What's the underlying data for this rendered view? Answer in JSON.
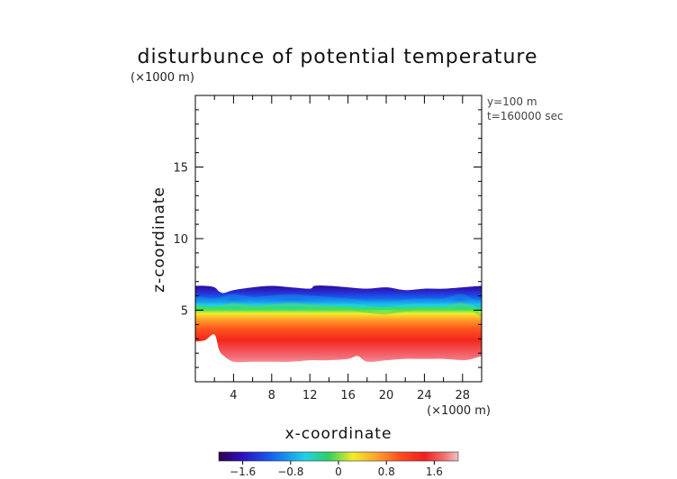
{
  "chart_data": {
    "type": "heatmap",
    "title": "disturbunce of potential temperature",
    "xlabel": "x-coordinate",
    "ylabel": "z-coordinate",
    "x_unit": "(×1000 m)",
    "y_unit": "(×1000 m)",
    "annotations": [
      "y=100 m",
      "t=160000 sec"
    ],
    "xlim": [
      0,
      30
    ],
    "ylim": [
      0,
      20
    ],
    "x_ticks": [
      4,
      8,
      12,
      16,
      20,
      24,
      28
    ],
    "y_ticks": [
      5,
      10,
      15
    ],
    "colorbar": {
      "range": [
        -2.0,
        2.0
      ],
      "ticks": [
        -1.6,
        -0.8,
        0,
        0.8,
        1.6
      ],
      "tick_labels": [
        "−1.6",
        "−0.8",
        "0",
        "0.8",
        "1.6"
      ],
      "colormap": "rainbow (purple–blue–cyan–green–yellow–orange–red–pink)"
    },
    "field": {
      "description": "negative disturbance layer near top of mixed layer, positive disturbance below",
      "top_boundary": {
        "x": [
          0,
          1,
          2,
          2.5,
          3,
          4,
          6,
          8,
          10,
          12,
          12.5,
          14,
          16,
          18,
          20,
          22,
          24,
          26,
          28,
          30
        ],
        "z": [
          6.7,
          6.7,
          6.6,
          6.3,
          6.2,
          6.4,
          6.6,
          6.7,
          6.6,
          6.5,
          6.7,
          6.7,
          6.6,
          6.5,
          6.6,
          6.4,
          6.5,
          6.5,
          6.6,
          6.7
        ]
      },
      "transition_level": {
        "x": [
          0,
          2,
          4,
          6,
          8,
          10,
          12,
          14,
          16,
          18,
          20,
          22,
          24,
          26,
          28,
          30
        ],
        "z": [
          5.3,
          5.1,
          5.4,
          5.2,
          5.3,
          5.4,
          5.3,
          5.2,
          5.1,
          4.9,
          4.8,
          5.0,
          5.1,
          5.1,
          5.4,
          4.6
        ]
      },
      "bottom_boundary": {
        "x": [
          0,
          1,
          2,
          2.5,
          3,
          4,
          6,
          8,
          10,
          12,
          14,
          16,
          17,
          18,
          20,
          22,
          24,
          26,
          28,
          29,
          30
        ],
        "z": [
          2.8,
          2.9,
          3.3,
          2.2,
          1.8,
          1.4,
          1.4,
          1.4,
          1.4,
          1.5,
          1.5,
          1.6,
          1.8,
          1.4,
          1.5,
          1.6,
          1.6,
          1.6,
          1.5,
          1.6,
          1.8
        ]
      }
    }
  }
}
